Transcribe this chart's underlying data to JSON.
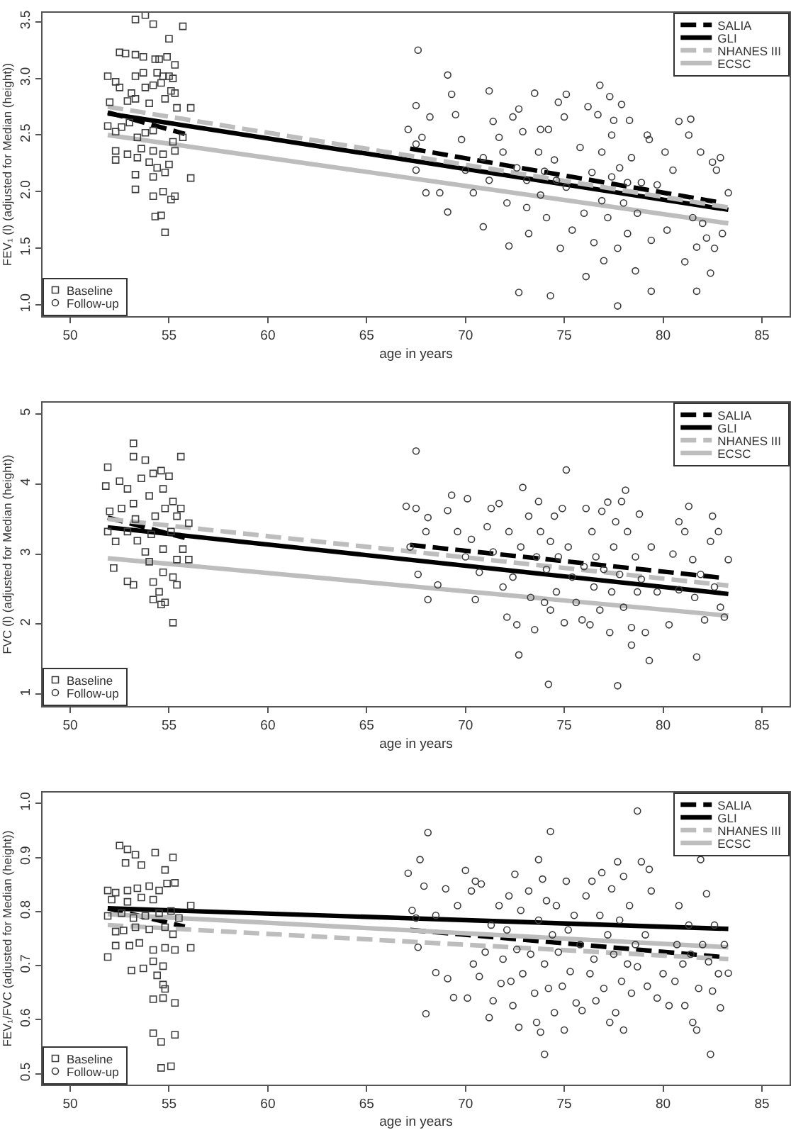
{
  "chart_data": [
    {
      "type": "scatter",
      "xlabel": "age in years",
      "ylabel": "FEV₁ (l) (adjusted for Median (height))",
      "xlim": [
        48.6,
        86.4
      ],
      "xticks": [
        50,
        55,
        60,
        65,
        70,
        75,
        80,
        85
      ],
      "ylim": [
        0.9,
        3.58
      ],
      "yticks": [
        {
          "value": 1,
          "label": "1.0"
        },
        1.5,
        {
          "value": 2,
          "label": "2.0"
        },
        2.5,
        {
          "value": 3,
          "label": "3.0"
        },
        3.5
      ],
      "legend": [
        "top right",
        "bottom left"
      ],
      "series": [
        {
          "name": "SALIA",
          "type": "line",
          "line_style": "dashed",
          "color": "#000000",
          "x": [
            51.9,
            55.8,
            61,
            67.2,
            83.0
          ],
          "values": [
            2.7,
            2.51,
            null,
            2.38,
            1.9
          ]
        },
        {
          "name": "GLI",
          "type": "line",
          "line_style": "solid",
          "color": "#000000",
          "x": [
            51.9,
            83.3
          ],
          "values": [
            2.69,
            1.84
          ]
        },
        {
          "name": "NHANES III",
          "type": "line",
          "line_style": "dashed",
          "color": "#bdbdbd",
          "x": [
            51.9,
            83.3
          ],
          "values": [
            2.75,
            1.86
          ]
        },
        {
          "name": "ECSC",
          "type": "line",
          "line_style": "solid",
          "color": "#bdbdbd",
          "x": [
            51.9,
            83.3
          ],
          "values": [
            2.5,
            1.72
          ]
        },
        {
          "name": "Baseline",
          "marker": "square",
          "color": "#3c3c3c",
          "x": [
            53.3,
            53.8,
            54.2,
            55.7,
            55.0,
            52.5,
            52.8,
            53.3,
            53.7,
            54.3,
            54.5,
            54.9,
            55.3,
            51.9,
            52.3,
            53.3,
            53.7,
            54.4,
            54.7,
            55.0,
            55.2,
            52.5,
            53.1,
            53.8,
            54.2,
            54.6,
            55.1,
            55.3,
            52.0,
            52.9,
            53.3,
            54.0,
            54.8,
            55.4,
            56.1,
            51.9,
            52.6,
            53.0,
            52.3,
            53.4,
            53.8,
            54.2,
            55.2,
            55.7,
            52.3,
            52.9,
            53.6,
            54.2,
            54.7,
            55.3,
            52.3,
            53.4,
            54.0,
            54.4,
            55.0,
            53.3,
            54.2,
            54.8,
            56.1,
            53.3,
            54.2,
            54.7,
            55.1,
            55.3,
            54.3,
            54.6,
            54.8
          ],
          "values": [
            3.52,
            3.56,
            3.48,
            3.46,
            3.35,
            3.23,
            3.22,
            3.21,
            3.19,
            3.17,
            3.17,
            3.19,
            3.12,
            3.02,
            2.97,
            3.02,
            3.05,
            3.05,
            3.02,
            3.02,
            3.0,
            2.92,
            2.87,
            2.92,
            2.94,
            2.96,
            2.89,
            2.87,
            2.79,
            2.8,
            2.82,
            2.78,
            2.82,
            2.74,
            2.74,
            2.58,
            2.57,
            2.61,
            2.53,
            2.48,
            2.52,
            2.54,
            2.44,
            2.48,
            2.36,
            2.33,
            2.38,
            2.36,
            2.33,
            2.36,
            2.28,
            2.3,
            2.26,
            2.21,
            2.24,
            2.15,
            2.13,
            2.17,
            2.12,
            2.02,
            1.96,
            2.0,
            1.93,
            1.96,
            1.78,
            1.79,
            1.64
          ]
        },
        {
          "name": "Follow-up",
          "marker": "circle",
          "color": "#3c3c3c",
          "x": [
            67.6,
            67.5,
            68.2,
            67.1,
            67.8,
            67.5,
            67.5,
            68.0,
            68.7,
            69.1,
            69.3,
            69.5,
            69.8,
            69.1,
            70.0,
            70.4,
            70.9,
            71.2,
            71.2,
            70.9,
            71.4,
            71.7,
            71.9,
            72.1,
            72.2,
            72.4,
            72.6,
            72.7,
            72.7,
            72.9,
            73.1,
            73.1,
            73.2,
            73.5,
            73.7,
            73.8,
            73.8,
            74.0,
            74.1,
            74.2,
            74.3,
            74.5,
            74.6,
            74.7,
            74.8,
            75.0,
            75.1,
            75.1,
            75.4,
            75.8,
            76.0,
            76.1,
            76.2,
            76.4,
            76.5,
            76.7,
            76.8,
            76.9,
            76.9,
            77.0,
            77.2,
            77.3,
            77.4,
            77.4,
            77.5,
            77.7,
            77.7,
            77.8,
            77.9,
            78.0,
            78.2,
            78.2,
            78.3,
            78.4,
            78.6,
            78.7,
            78.9,
            79.2,
            79.3,
            79.4,
            79.4,
            79.7,
            80.1,
            80.5,
            80.2,
            80.8,
            81.1,
            81.3,
            81.4,
            81.5,
            81.7,
            81.7,
            81.9,
            82.0,
            82.2,
            82.4,
            82.5,
            82.6,
            82.7,
            82.9,
            83.0,
            83.3
          ],
          "values": [
            3.25,
            2.76,
            2.66,
            2.55,
            2.48,
            2.42,
            2.19,
            1.99,
            1.99,
            3.03,
            2.86,
            2.68,
            2.46,
            1.82,
            2.19,
            1.99,
            2.3,
            2.1,
            2.89,
            1.69,
            2.62,
            2.48,
            2.35,
            1.9,
            1.52,
            2.66,
            2.21,
            2.73,
            1.11,
            2.53,
            2.1,
            1.86,
            1.63,
            2.87,
            2.35,
            2.55,
            1.97,
            2.18,
            1.77,
            2.55,
            1.08,
            2.28,
            2.1,
            2.79,
            1.5,
            2.66,
            2.04,
            2.86,
            1.66,
            2.39,
            1.81,
            1.25,
            2.75,
            2.17,
            1.55,
            2.68,
            2.94,
            1.92,
            2.35,
            1.39,
            1.77,
            2.84,
            2.5,
            2.13,
            2.63,
            1.5,
            0.99,
            2.21,
            2.77,
            1.9,
            2.08,
            1.63,
            2.63,
            2.3,
            1.3,
            1.81,
            2.08,
            2.5,
            2.46,
            1.57,
            1.12,
            2.06,
            2.35,
            2.19,
            1.66,
            2.62,
            1.38,
            2.5,
            2.64,
            1.77,
            1.51,
            1.12,
            2.35,
            1.72,
            1.59,
            1.28,
            2.26,
            1.5,
            2.19,
            2.3,
            1.63,
            1.99
          ]
        }
      ]
    },
    {
      "type": "scatter",
      "xlabel": "age in years",
      "ylabel": "FVC (l) (adjusted for Median (height))",
      "xlim": [
        48.6,
        86.4
      ],
      "xticks": [
        50,
        55,
        60,
        65,
        70,
        75,
        80,
        85
      ],
      "ylim": [
        0.83,
        5.16
      ],
      "yticks": [
        1,
        2,
        3,
        4,
        5
      ],
      "legend": [
        "top right",
        "bottom left"
      ],
      "series": [
        {
          "name": "SALIA",
          "type": "line",
          "line_style": "dashed",
          "color": "#000000",
          "x": [
            51.9,
            55.8,
            61,
            67.2,
            83.0
          ],
          "values": [
            3.52,
            3.23,
            null,
            3.13,
            2.66
          ]
        },
        {
          "name": "GLI",
          "type": "line",
          "line_style": "solid",
          "color": "#000000",
          "x": [
            51.9,
            83.3
          ],
          "values": [
            3.38,
            2.43
          ]
        },
        {
          "name": "NHANES III",
          "type": "line",
          "line_style": "dashed",
          "color": "#bdbdbd",
          "x": [
            51.9,
            83.3
          ],
          "values": [
            3.5,
            2.55
          ]
        },
        {
          "name": "ECSC",
          "type": "line",
          "line_style": "solid",
          "color": "#bdbdbd",
          "x": [
            51.9,
            83.3
          ],
          "values": [
            2.94,
            2.12
          ]
        },
        {
          "name": "Baseline",
          "marker": "square",
          "color": "#3c3c3c",
          "x": [
            51.9,
            51.8,
            53.2,
            53.2,
            53.8,
            55.6,
            52.5,
            52.9,
            53.6,
            54.2,
            54.6,
            55.0,
            52.0,
            52.6,
            53.2,
            54.0,
            54.7,
            55.2,
            55.4,
            56.0,
            51.9,
            52.3,
            52.9,
            53.4,
            54.1,
            55.1,
            55.7,
            52.2,
            52.9,
            53.2,
            54.0,
            54.2,
            54.7,
            55.2,
            56.0,
            54.5,
            54.2,
            54.6,
            54.8,
            55.2,
            55.4,
            53.8,
            54.7,
            55.4,
            53.3,
            54.3,
            54.8,
            55.6
          ],
          "values": [
            4.24,
            3.97,
            4.58,
            4.39,
            4.34,
            4.39,
            4.04,
            3.93,
            4.08,
            4.15,
            4.19,
            4.11,
            3.61,
            3.65,
            3.72,
            3.83,
            3.93,
            3.75,
            3.54,
            3.44,
            3.32,
            3.18,
            3.32,
            3.19,
            3.28,
            3.32,
            3.07,
            2.8,
            2.61,
            2.56,
            2.89,
            2.6,
            2.74,
            2.67,
            2.92,
            2.46,
            2.35,
            2.28,
            2.31,
            2.02,
            2.56,
            3.03,
            3.07,
            2.92,
            3.5,
            3.54,
            3.65,
            3.65
          ]
        },
        {
          "name": "Follow-up",
          "marker": "circle",
          "color": "#3c3c3c",
          "x": [
            67.5,
            67.0,
            67.5,
            68.1,
            68.0,
            67.2,
            67.6,
            68.1,
            68.6,
            69.1,
            69.3,
            69.6,
            70.0,
            70.1,
            70.3,
            70.7,
            70.5,
            71.1,
            71.3,
            71.4,
            71.7,
            71.9,
            72.1,
            72.2,
            72.4,
            72.6,
            72.7,
            72.8,
            72.9,
            73.2,
            73.3,
            73.5,
            73.6,
            73.7,
            73.8,
            74.0,
            74.1,
            74.2,
            74.3,
            74.3,
            74.5,
            74.6,
            74.7,
            74.9,
            75.0,
            75.1,
            75.2,
            75.4,
            75.6,
            75.9,
            76.0,
            76.1,
            76.3,
            76.4,
            76.5,
            76.6,
            76.8,
            76.9,
            77.0,
            77.2,
            77.3,
            77.4,
            77.5,
            77.6,
            77.7,
            77.8,
            77.9,
            78.0,
            78.1,
            78.2,
            78.4,
            78.4,
            78.6,
            78.7,
            78.8,
            78.9,
            79.1,
            79.3,
            79.4,
            79.7,
            80.3,
            80.5,
            80.8,
            80.8,
            81.1,
            81.3,
            81.5,
            81.6,
            81.7,
            81.9,
            82.1,
            82.4,
            82.5,
            82.6,
            82.8,
            82.9,
            83.1,
            83.3
          ],
          "values": [
            4.47,
            3.68,
            3.65,
            3.52,
            3.32,
            3.1,
            2.71,
            2.35,
            2.56,
            3.62,
            3.84,
            3.32,
            2.96,
            3.79,
            3.21,
            2.74,
            2.35,
            3.39,
            3.65,
            3.03,
            3.72,
            2.53,
            2.1,
            3.32,
            2.67,
            1.99,
            1.56,
            3.1,
            3.95,
            3.54,
            2.38,
            1.92,
            2.96,
            3.75,
            3.32,
            2.31,
            2.78,
            1.14,
            2.2,
            3.18,
            3.54,
            2.46,
            2.96,
            3.65,
            2.02,
            4.2,
            3.1,
            2.67,
            2.31,
            2.06,
            2.82,
            3.65,
            1.99,
            3.32,
            2.53,
            2.96,
            2.2,
            3.61,
            2.78,
            3.74,
            1.88,
            2.46,
            3.1,
            3.46,
            1.12,
            2.71,
            3.75,
            2.24,
            3.91,
            3.32,
            1.95,
            1.7,
            2.96,
            2.46,
            3.57,
            2.64,
            1.88,
            1.48,
            3.1,
            2.46,
            1.99,
            3.0,
            3.46,
            2.49,
            3.32,
            3.68,
            2.92,
            2.38,
            1.53,
            2.71,
            2.06,
            3.18,
            3.54,
            2.53,
            3.32,
            2.24,
            2.1,
            2.92
          ]
        }
      ]
    },
    {
      "type": "scatter",
      "xlabel": "age in years",
      "ylabel": "FEV₁/FVC (adjusted for Median (height))",
      "xlim": [
        48.6,
        86.4
      ],
      "xticks": [
        50,
        55,
        60,
        65,
        70,
        75,
        80,
        85
      ],
      "ylim": [
        0.48,
        1.02
      ],
      "yticks": [
        0.5,
        0.6,
        0.7,
        0.8,
        0.9,
        {
          "value": 1,
          "label": "1.0"
        }
      ],
      "legend": [
        "top right",
        "bottom left"
      ],
      "series": [
        {
          "name": "SALIA",
          "type": "line",
          "line_style": "dashed",
          "color": "#000000",
          "x": [
            51.9,
            55.8,
            61,
            67.2,
            83.0
          ],
          "values": [
            0.806,
            0.772,
            null,
            0.766,
            0.716
          ]
        },
        {
          "name": "GLI",
          "type": "line",
          "line_style": "solid",
          "color": "#000000",
          "x": [
            51.9,
            83.3
          ],
          "values": [
            0.806,
            0.768
          ]
        },
        {
          "name": "NHANES III",
          "type": "line",
          "line_style": "dashed",
          "color": "#bdbdbd",
          "x": [
            51.9,
            83.3
          ],
          "values": [
            0.775,
            0.712
          ]
        },
        {
          "name": "ECSC",
          "type": "line",
          "line_style": "solid",
          "color": "#bdbdbd",
          "x": [
            51.9,
            83.3
          ],
          "values": [
            0.795,
            0.734
          ]
        },
        {
          "name": "Baseline",
          "marker": "square",
          "color": "#3c3c3c",
          "x": [
            52.5,
            52.9,
            53.3,
            54.3,
            55.2,
            52.8,
            53.6,
            54.8,
            51.9,
            52.3,
            52.9,
            53.4,
            54.0,
            54.5,
            54.9,
            55.3,
            52.1,
            52.9,
            53.6,
            54.2,
            56.1,
            51.9,
            52.6,
            53.2,
            53.8,
            54.5,
            55.1,
            55.5,
            52.3,
            52.7,
            53.3,
            54.0,
            54.8,
            55.2,
            51.9,
            52.3,
            53.0,
            53.5,
            54.2,
            54.8,
            55.3,
            56.1,
            53.1,
            53.7,
            54.2,
            54.7,
            54.4,
            54.7,
            54.8,
            54.2,
            55.3,
            54.7,
            54.2,
            54.6,
            55.3,
            54.6,
            55.1
          ],
          "values": [
            0.922,
            0.915,
            0.905,
            0.909,
            0.9,
            0.89,
            0.886,
            0.877,
            0.839,
            0.835,
            0.839,
            0.843,
            0.847,
            0.839,
            0.852,
            0.853,
            0.822,
            0.818,
            0.826,
            0.822,
            0.811,
            0.792,
            0.797,
            0.788,
            0.792,
            0.797,
            0.801,
            0.788,
            0.763,
            0.765,
            0.771,
            0.767,
            0.771,
            0.758,
            0.716,
            0.737,
            0.737,
            0.742,
            0.729,
            0.733,
            0.729,
            0.733,
            0.691,
            0.695,
            0.708,
            0.699,
            0.682,
            0.665,
            0.657,
            0.638,
            0.631,
            0.64,
            0.575,
            0.559,
            0.572,
            0.511,
            0.514
          ]
        },
        {
          "name": "Follow-up",
          "marker": "circle",
          "color": "#3c3c3c",
          "x": [
            67.1,
            67.7,
            67.3,
            67.5,
            67.9,
            68.1,
            68.0,
            68.5,
            67.6,
            68.5,
            69.0,
            69.1,
            69.4,
            69.6,
            70.0,
            70.1,
            70.3,
            70.4,
            70.5,
            70.7,
            70.8,
            71.0,
            71.2,
            71.3,
            71.4,
            71.7,
            71.8,
            71.9,
            72.1,
            72.2,
            72.3,
            72.4,
            72.5,
            72.6,
            72.7,
            72.8,
            72.9,
            73.2,
            73.3,
            73.5,
            73.6,
            73.7,
            73.7,
            73.8,
            73.9,
            74.0,
            74.0,
            74.1,
            74.2,
            74.3,
            74.4,
            74.5,
            74.6,
            74.7,
            74.9,
            75.0,
            75.1,
            75.2,
            75.3,
            75.5,
            75.6,
            75.8,
            75.9,
            76.1,
            76.3,
            76.4,
            76.5,
            76.6,
            76.8,
            76.9,
            77.0,
            77.2,
            77.3,
            77.4,
            77.5,
            77.6,
            77.7,
            77.8,
            77.9,
            78.0,
            78.0,
            78.2,
            78.3,
            78.4,
            78.6,
            78.7,
            78.7,
            78.9,
            79.1,
            79.2,
            79.3,
            79.4,
            79.7,
            80.0,
            80.3,
            80.6,
            80.7,
            80.8,
            81.0,
            81.1,
            81.3,
            81.4,
            81.5,
            81.7,
            81.8,
            81.9,
            82.0,
            82.2,
            82.3,
            82.4,
            82.5,
            82.6,
            82.8,
            82.9,
            83.1,
            83.3
          ],
          "values": [
            0.871,
            0.896,
            0.802,
            0.788,
            0.847,
            0.946,
            0.611,
            0.793,
            0.734,
            0.687,
            0.842,
            0.676,
            0.641,
            0.811,
            0.876,
            0.64,
            0.838,
            0.703,
            0.856,
            0.68,
            0.851,
            0.725,
            0.604,
            0.775,
            0.635,
            0.811,
            0.667,
            0.712,
            0.766,
            0.829,
            0.671,
            0.626,
            0.869,
            0.73,
            0.586,
            0.802,
            0.685,
            0.838,
            0.721,
            0.649,
            0.595,
            0.896,
            0.784,
            0.577,
            0.86,
            0.703,
            0.536,
            0.82,
            0.658,
            0.948,
            0.757,
            0.613,
            0.811,
            0.725,
            0.662,
            0.581,
            0.856,
            0.766,
            0.689,
            0.793,
            0.631,
            0.739,
            0.617,
            0.829,
            0.685,
            0.856,
            0.712,
            0.635,
            0.793,
            0.872,
            0.658,
            0.757,
            0.595,
            0.842,
            0.721,
            0.613,
            0.892,
            0.784,
            0.671,
            0.865,
            0.581,
            0.703,
            0.811,
            0.649,
            0.739,
            0.986,
            0.698,
            0.892,
            0.757,
            0.662,
            0.878,
            0.838,
            0.64,
            0.685,
            0.626,
            0.671,
            0.739,
            0.811,
            0.703,
            0.626,
            0.775,
            0.721,
            0.595,
            0.581,
            0.658,
            0.896,
            0.739,
            0.833,
            0.707,
            0.536,
            0.653,
            0.775,
            0.685,
            0.622,
            0.739,
            0.686
          ]
        }
      ]
    }
  ]
}
